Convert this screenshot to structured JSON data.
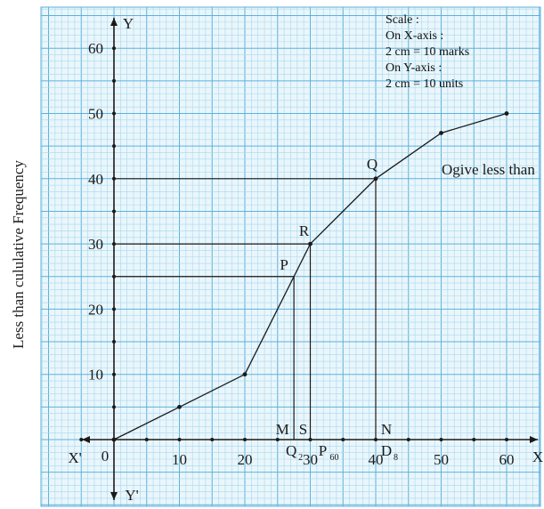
{
  "chart_data": {
    "type": "line",
    "ylabel": "Less than cululative Frequency",
    "x_ticks": [
      10,
      20,
      30,
      40,
      50,
      60
    ],
    "y_ticks": [
      10,
      20,
      30,
      40,
      50,
      60
    ],
    "xlim": [
      -5,
      64
    ],
    "ylim": [
      -10,
      66
    ],
    "grid": true,
    "series": [
      {
        "name": "Ogive less than",
        "color": "#1a1a1a",
        "points": [
          [
            0,
            0
          ],
          [
            10,
            5
          ],
          [
            20,
            10
          ],
          [
            30,
            30
          ],
          [
            40,
            40
          ],
          [
            50,
            47
          ],
          [
            60,
            50
          ]
        ]
      }
    ],
    "axis_labels": {
      "x_pos": "X",
      "x_neg": "X'",
      "y_pos": "Y",
      "y_neg": "Y'",
      "origin": "0"
    },
    "x_minor_dots": [
      5,
      10,
      15,
      20,
      25,
      30,
      35,
      40,
      45,
      50,
      55,
      60
    ],
    "y_minor_dots": [
      5,
      10,
      15,
      20,
      25,
      30,
      35,
      40,
      45,
      50,
      55,
      60
    ],
    "guides": [
      {
        "label": "P",
        "x": 27.5,
        "y": 25,
        "foot": "M",
        "foot_sub": "Q",
        "foot_sub_index": "2"
      },
      {
        "label": "R",
        "x": 30,
        "y": 30,
        "foot": "S",
        "foot_sub": "P",
        "foot_sub_index": "60"
      },
      {
        "label": "Q",
        "x": 40,
        "y": 40,
        "foot": "N",
        "foot_sub": "D",
        "foot_sub_index": "8"
      }
    ],
    "scale_note": [
      "Scale :",
      "On X-axis :",
      "2 cm = 10 marks",
      "On Y-axis :",
      "2 cm = 10 units"
    ],
    "colors": {
      "grid_fine": "#a6d8ee",
      "grid_major": "#5cb2dc",
      "paper": "#eaf6fb",
      "ink": "#1a1a1a"
    }
  }
}
